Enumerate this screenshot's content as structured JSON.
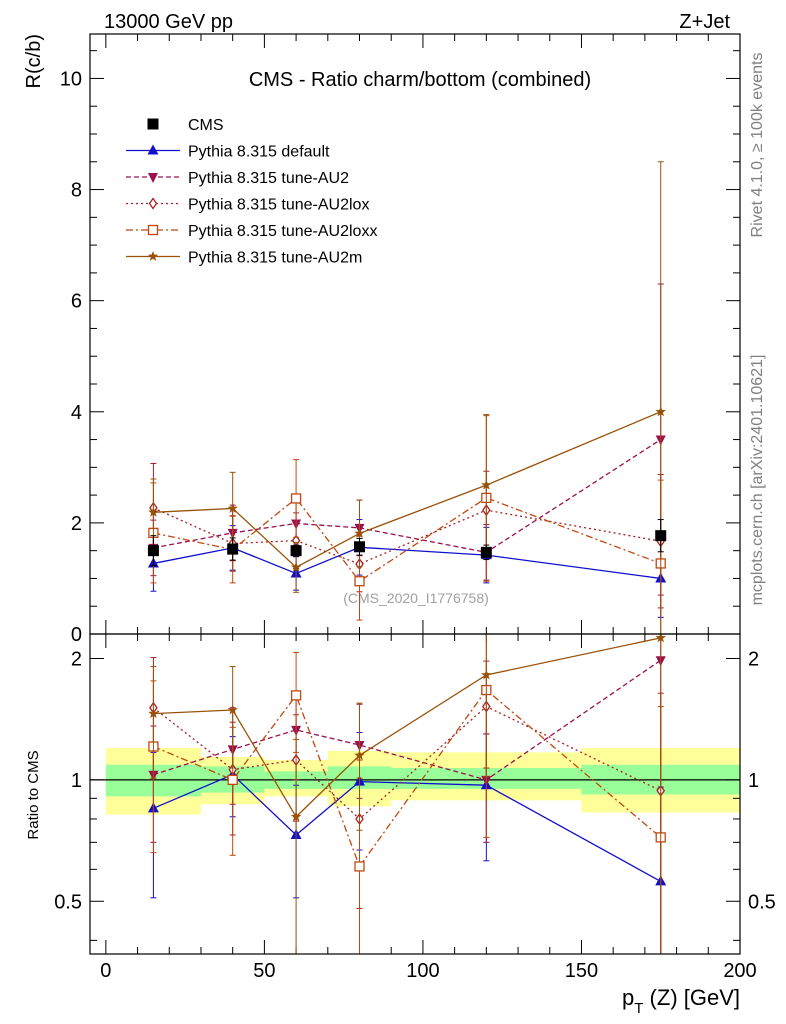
{
  "header": {
    "energy_label": "13000 GeV pp",
    "process_label": "Z+Jet"
  },
  "side_text": {
    "rivet": "Rivet 4.1.0, ≥ 100k events",
    "mcplots": "mcplots.cern.ch [arXiv:2401.10621]"
  },
  "chart_data": [
    {
      "type": "line",
      "panel": "main",
      "title": "CMS - Ratio charm/bottom (combined)",
      "ylabel": "R(c/b)",
      "xlim": [
        -5,
        200
      ],
      "ylim": [
        0,
        10.8
      ],
      "yticks": [
        0,
        2,
        4,
        6,
        8,
        10
      ],
      "yticklabels": [
        "0",
        "2",
        "4",
        "6",
        "8",
        "10"
      ],
      "watermark": "(CMS_2020_I1776758)",
      "x": [
        15,
        40,
        60,
        80,
        120,
        175
      ],
      "x_bins": [
        [
          0,
          30
        ],
        [
          30,
          50
        ],
        [
          50,
          70
        ],
        [
          70,
          90
        ],
        [
          90,
          150
        ],
        [
          150,
          200
        ]
      ],
      "series": [
        {
          "name": "CMS",
          "style": "data",
          "color": "#000000",
          "marker": "square",
          "values": [
            1.5,
            1.53,
            1.5,
            1.57,
            1.47,
            1.77
          ],
          "errors": [
            0.27,
            0.2,
            0.1,
            0.15,
            0.13,
            0.29
          ]
        },
        {
          "name": "Pythia 8.315 default",
          "color": "#1010cc",
          "marker": "triangle-up",
          "dash": "",
          "values": [
            1.27,
            1.55,
            1.09,
            1.56,
            1.42,
            1.0
          ],
          "errors": [
            0.5,
            0.4,
            0.3,
            0.5,
            0.5,
            0.7
          ]
        },
        {
          "name": "Pythia 8.315 tune-AU2",
          "color": "#9a1050",
          "marker": "triangle-down",
          "dash": "5,3",
          "values": [
            1.55,
            1.82,
            1.99,
            1.91,
            1.47,
            3.5
          ],
          "errors": [
            0.5,
            0.5,
            0.5,
            0.5,
            0.5,
            2.8
          ]
        },
        {
          "name": "Pythia 8.315 tune-AU2lox",
          "color": "#a82020",
          "marker": "diamond-open",
          "dash": "2,3",
          "values": [
            2.27,
            1.63,
            1.68,
            1.26,
            2.23,
            1.67
          ],
          "errors": [
            0.8,
            0.5,
            0.5,
            0.5,
            0.7,
            1.2
          ]
        },
        {
          "name": "Pythia 8.315 tune-AU2loxx",
          "color": "#c04810",
          "marker": "square-open",
          "dash": "7,3,2,3",
          "values": [
            1.82,
            1.52,
            2.44,
            0.95,
            2.45,
            1.27
          ],
          "errors": [
            0.9,
            0.6,
            0.7,
            0.7,
            1.5,
            1.5
          ]
        },
        {
          "name": "Pythia 8.315 tune-AU2m",
          "color": "#9a5208",
          "marker": "star",
          "dash": "",
          "values": [
            2.19,
            2.26,
            1.2,
            1.81,
            2.68,
            4.0
          ],
          "errors": [
            0.6,
            0.65,
            0.45,
            0.6,
            1.25,
            4.5
          ]
        }
      ]
    },
    {
      "type": "line",
      "panel": "ratio",
      "ylabel": "Ratio to CMS",
      "xlabel": "p_T (Z) [GeV]",
      "xlim": [
        -5,
        200
      ],
      "ylim": [
        0.37,
        2.3
      ],
      "yticks": [
        0.5,
        1,
        2
      ],
      "yticklabels": [
        "0.5",
        "1",
        "2"
      ],
      "xticks": [
        0,
        50,
        100,
        150,
        200
      ],
      "xticklabels": [
        "0",
        "50",
        "100",
        "150",
        "200"
      ],
      "x": [
        15,
        40,
        60,
        80,
        120,
        175
      ],
      "bands": {
        "bins": [
          [
            0,
            30
          ],
          [
            30,
            50
          ],
          [
            50,
            70
          ],
          [
            70,
            90
          ],
          [
            90,
            150
          ],
          [
            150,
            200
          ]
        ],
        "stat_lo": [
          0.91,
          0.93,
          0.95,
          0.95,
          0.95,
          0.92
        ],
        "stat_hi": [
          1.09,
          1.08,
          1.05,
          1.08,
          1.07,
          1.09
        ],
        "total_lo": [
          0.82,
          0.87,
          0.91,
          0.86,
          0.89,
          0.83
        ],
        "total_hi": [
          1.2,
          1.14,
          1.12,
          1.18,
          1.17,
          1.2
        ]
      },
      "series": [
        {
          "name": "Pythia 8.315 default",
          "values": [
            0.85,
            1.03,
            0.73,
            0.99,
            0.97,
            0.56
          ],
          "err_lo": [
            0.34,
            0.22,
            0.22,
            0.32,
            0.34,
            0.23
          ],
          "err_hi": [
            0.32,
            0.25,
            0.24,
            0.32,
            0.33,
            0.4
          ]
        },
        {
          "name": "Pythia 8.315 tune-AU2",
          "values": [
            1.03,
            1.19,
            1.33,
            1.22,
            1.0,
            1.98
          ],
          "err_lo": [
            0.33,
            0.32,
            0.33,
            0.32,
            0.3,
            1.65
          ],
          "err_hi": [
            0.33,
            0.32,
            0.33,
            0.32,
            0.3,
            1.65
          ]
        },
        {
          "name": "Pythia 8.315 tune-AU2lox",
          "values": [
            1.51,
            1.06,
            1.12,
            0.8,
            1.52,
            0.94
          ],
          "err_lo": [
            0.5,
            0.33,
            0.33,
            0.32,
            0.45,
            0.7
          ],
          "err_hi": [
            0.5,
            0.33,
            0.33,
            0.32,
            0.45,
            0.7
          ]
        },
        {
          "name": "Pythia 8.315 tune-AU2loxx",
          "values": [
            1.21,
            1.0,
            1.62,
            0.61,
            1.67,
            0.72
          ],
          "err_lo": [
            0.55,
            0.35,
            0.45,
            0.4,
            0.95,
            0.8
          ],
          "err_hi": [
            0.55,
            0.35,
            0.45,
            0.4,
            0.95,
            0.8
          ]
        },
        {
          "name": "Pythia 8.315 tune-AU2m",
          "values": [
            1.46,
            1.49,
            0.81,
            1.15,
            1.82,
            2.25
          ],
          "err_lo": [
            0.45,
            0.42,
            0.45,
            0.4,
            0.8,
            1.9
          ],
          "err_hi": [
            0.45,
            0.42,
            0.45,
            0.4,
            0.8,
            1.9
          ]
        }
      ]
    }
  ],
  "colors": {
    "stat_band": "#99ff99",
    "total_band": "#ffff99",
    "frame": "#000000",
    "side_text": "#808080",
    "watermark": "#a0a0a0"
  }
}
